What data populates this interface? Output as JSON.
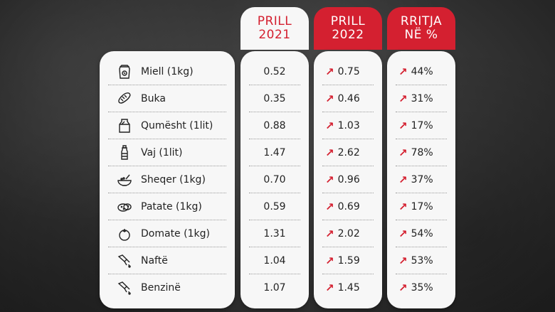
{
  "headers": {
    "col2021": [
      "PRILL",
      "2021"
    ],
    "col2022": [
      "PRILL",
      "2022"
    ],
    "pct": [
      "RRITJA",
      "NË %"
    ]
  },
  "colors": {
    "accent": "#d42030",
    "panel": "#f7f7f7",
    "text": "#222222"
  },
  "rows": [
    {
      "name": "Miell (1kg)",
      "icon": "flour-bag-icon",
      "v2021": "0.52",
      "v2022": "0.75",
      "pct": "44%"
    },
    {
      "name": "Buka",
      "icon": "bread-icon",
      "v2021": "0.35",
      "v2022": "0.46",
      "pct": "31%"
    },
    {
      "name": "Qumësht (1lit)",
      "icon": "milk-carton-icon",
      "v2021": "0.88",
      "v2022": "1.03",
      "pct": "17%"
    },
    {
      "name": "Vaj (1lit)",
      "icon": "oil-bottle-icon",
      "v2021": "1.47",
      "v2022": "2.62",
      "pct": "78%"
    },
    {
      "name": "Sheqer (1kg)",
      "icon": "sugar-bowl-icon",
      "v2021": "0.70",
      "v2022": "0.96",
      "pct": "37%"
    },
    {
      "name": "Patate (1kg)",
      "icon": "potato-icon",
      "v2021": "0.59",
      "v2022": "0.69",
      "pct": "17%"
    },
    {
      "name": "Domate (1kg)",
      "icon": "tomato-icon",
      "v2021": "1.31",
      "v2022": "2.02",
      "pct": "54%"
    },
    {
      "name": "Naftë",
      "icon": "fuel-nozzle-icon",
      "v2021": "1.04",
      "v2022": "1.59",
      "pct": "53%"
    },
    {
      "name": "Benzinë",
      "icon": "fuel-nozzle-icon",
      "v2021": "1.07",
      "v2022": "1.45",
      "pct": "35%"
    }
  ]
}
